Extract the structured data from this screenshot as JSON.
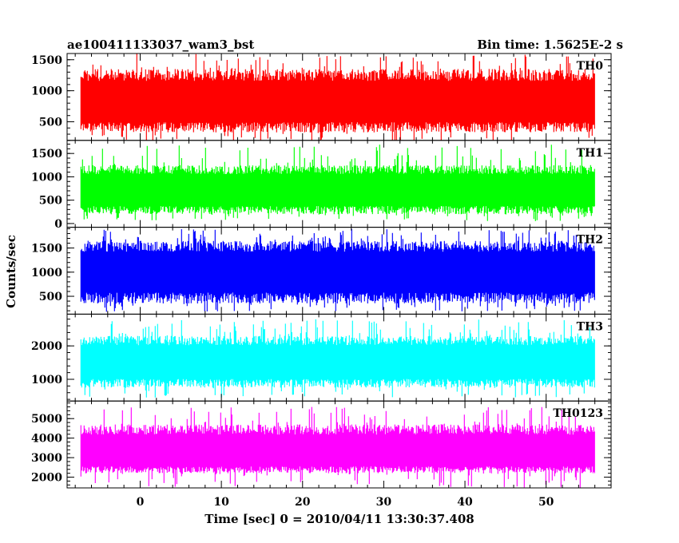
{
  "header": {
    "title": "ae100411133037_wam3_bst",
    "bin_time": "Bin time: 1.5625E-2 s"
  },
  "chart_data": {
    "type": "line",
    "xlabel": "Time [sec] 0 = 2010/04/11 13:30:37.408",
    "ylabel": "Counts/sec",
    "xlim": [
      -9,
      58
    ],
    "x_ticks": [
      0,
      10,
      20,
      30,
      40,
      50
    ],
    "x_tick_labels": [
      "0",
      "10",
      "20",
      "30",
      "40",
      "50"
    ],
    "data_x_range": [
      -7.3,
      56.0
    ],
    "panels": [
      {
        "name": "TH0",
        "color": "#ff0000",
        "ylim": [
          200,
          1600
        ],
        "yticks": [
          500,
          1000,
          1500
        ],
        "ytick_labels": [
          "500",
          "1000",
          "1500"
        ],
        "mean": 800,
        "band_low": 330,
        "band_high": 1350,
        "spike_max": 1600,
        "dip_min": 150
      },
      {
        "name": "TH1",
        "color": "#00ff00",
        "ylim": [
          -80,
          1780
        ],
        "yticks": [
          0,
          500,
          1000,
          1500
        ],
        "ytick_labels": [
          "0",
          "500",
          "1000",
          "1500"
        ],
        "mean": 700,
        "band_low": 200,
        "band_high": 1250,
        "spike_max": 1700,
        "dip_min": 50
      },
      {
        "name": "TH2",
        "color": "#0000ff",
        "ylim": [
          130,
          1930
        ],
        "yticks": [
          500,
          1000,
          1500
        ],
        "ytick_labels": [
          "500",
          "1000",
          "1500"
        ],
        "mean": 1000,
        "band_low": 350,
        "band_high": 1650,
        "spike_max": 1900,
        "dip_min": 180
      },
      {
        "name": "TH3",
        "color": "#00ffff",
        "ylim": [
          350,
          2950
        ],
        "yticks": [
          1000,
          2000
        ],
        "ytick_labels": [
          "1000",
          "2000"
        ],
        "mean": 1500,
        "band_low": 750,
        "band_high": 2300,
        "spike_max": 2800,
        "dip_min": 450
      },
      {
        "name": "TH0123",
        "color": "#ff00ff",
        "ylim": [
          1450,
          5900
        ],
        "yticks": [
          2000,
          3000,
          4000,
          5000
        ],
        "ytick_labels": [
          "2000",
          "3000",
          "4000",
          "5000"
        ],
        "mean": 3200,
        "band_low": 2200,
        "band_high": 4700,
        "spike_max": 5600,
        "dip_min": 1450
      }
    ]
  }
}
